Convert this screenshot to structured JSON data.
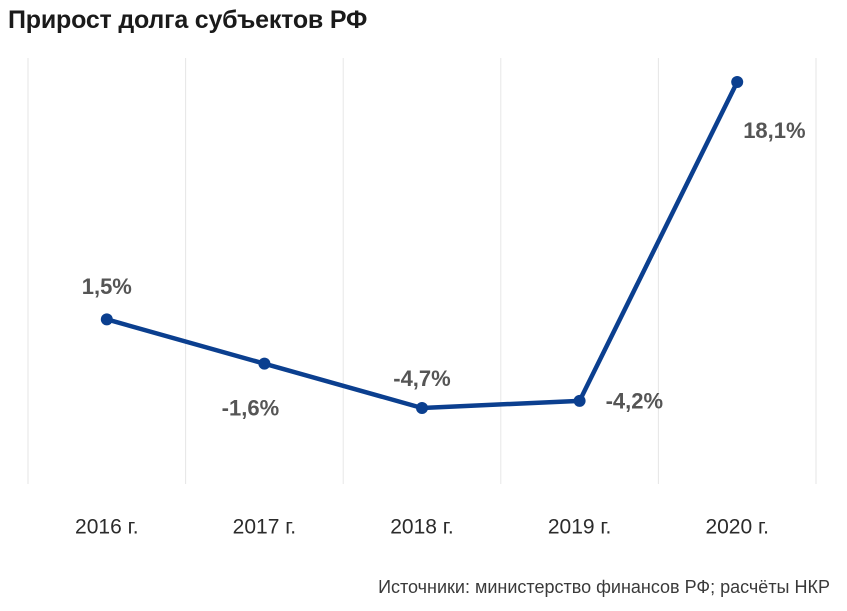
{
  "title": "Прирост долга субъектов РФ",
  "source": "Источники: министерство финансов РФ; расчёты НКР",
  "colors": {
    "line": "#0b3f8f",
    "grid": "#e6e6e6",
    "label": "#555555",
    "title": "#1a1a1a"
  },
  "chart_data": {
    "type": "line",
    "title": "Прирост долга субъектов РФ",
    "categories": [
      "2016 г.",
      "2017 г.",
      "2018 г.",
      "2019 г.",
      "2020 г."
    ],
    "series": [
      {
        "values": [
          1.5,
          -1.6,
          -4.7,
          -4.2,
          18.1
        ],
        "labels": [
          "1,5%",
          "-1,6%",
          "-4,7%",
          "-4,2%",
          "18,1%"
        ]
      }
    ],
    "y_unit": "%",
    "ylim": [
      -4.7,
      18.1
    ],
    "grid": "vertical",
    "legend": "none",
    "source": "Источники: министерство финансов РФ; расчёты НКР"
  }
}
